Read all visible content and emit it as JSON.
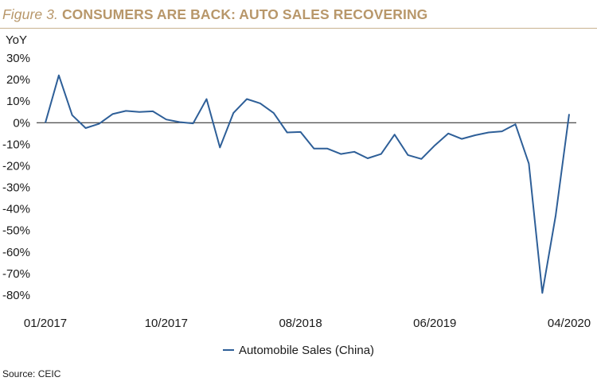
{
  "header": {
    "figure_label": "Figure 3.",
    "title": "CONSUMERS ARE BACK: AUTO SALES RECOVERING"
  },
  "source": "Source: CEIC",
  "colors": {
    "title": "#b8976a",
    "series": "#2e5f98",
    "rule": "#c9b38f"
  },
  "chart_data": {
    "type": "line",
    "title": "CONSUMERS ARE BACK: AUTO SALES RECOVERING",
    "ylabel": "YoY",
    "xlabel": "",
    "ylim": [
      -80,
      30
    ],
    "yticks": [
      30,
      20,
      10,
      0,
      -10,
      -20,
      -30,
      -40,
      -50,
      -60,
      -70,
      -80
    ],
    "ytick_labels": [
      "30%",
      "20%",
      "10%",
      "0%",
      "-10%",
      "-20%",
      "-30%",
      "-40%",
      "-50%",
      "-60%",
      "-70%",
      "-80%"
    ],
    "xtick_labels": [
      "01/2017",
      "10/2017",
      "08/2018",
      "06/2019",
      "04/2020"
    ],
    "xtick_dates": [
      "2017-01",
      "2017-10",
      "2018-08",
      "2019-06",
      "2020-04"
    ],
    "zero_line": true,
    "grid": false,
    "legend_position": "bottom-center",
    "series": [
      {
        "name": "Automobile Sales (China)",
        "color": "#2e5f98",
        "x": [
          "2017-01",
          "2017-02",
          "2017-03",
          "2017-04",
          "2017-05",
          "2017-06",
          "2017-07",
          "2017-08",
          "2017-09",
          "2017-10",
          "2017-11",
          "2017-12",
          "2018-01",
          "2018-02",
          "2018-03",
          "2018-04",
          "2018-05",
          "2018-06",
          "2018-07",
          "2018-08",
          "2018-09",
          "2018-10",
          "2018-11",
          "2018-12",
          "2019-01",
          "2019-02",
          "2019-03",
          "2019-04",
          "2019-05",
          "2019-06",
          "2019-07",
          "2019-08",
          "2019-09",
          "2019-10",
          "2019-11",
          "2019-12",
          "2020-01",
          "2020-02",
          "2020-03",
          "2020-04"
        ],
        "values": [
          0,
          22,
          3.5,
          -2.5,
          -0.5,
          4,
          5.5,
          5,
          5.3,
          1.5,
          0.3,
          -0.3,
          11,
          -11.5,
          4.5,
          11,
          9,
          4.5,
          -4.5,
          -4.3,
          -12,
          -12,
          -14.5,
          -13.5,
          -16.5,
          -14.5,
          -5.5,
          -15,
          -16.8,
          -10.5,
          -5,
          -7.5,
          -5.8,
          -4.5,
          -4,
          -0.7,
          -19,
          -79,
          -43,
          4
        ]
      }
    ]
  }
}
